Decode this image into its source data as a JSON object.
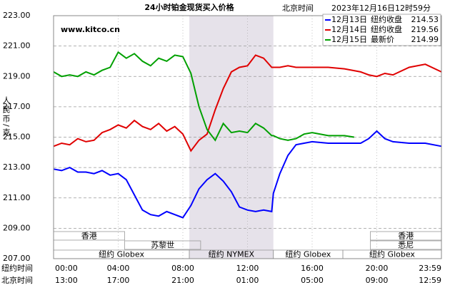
{
  "chart_data": {
    "type": "line",
    "title": "24小时铂金现货买入价格",
    "subtitle": "北京时间",
    "date": "2023年12月16日12时59分",
    "watermark": "www.kitco.cn",
    "ylabel": "人民币/克",
    "ylim": [
      207,
      223
    ],
    "yticks": [
      {
        "value": 207,
        "label": "207.00"
      },
      {
        "value": 209,
        "label": "209.00"
      },
      {
        "value": 211,
        "label": "211.00"
      },
      {
        "value": 213,
        "label": "213.00"
      },
      {
        "value": 215,
        "label": "215.00"
      },
      {
        "value": 217,
        "label": "217.00"
      },
      {
        "value": 219,
        "label": "219.00"
      },
      {
        "value": 221,
        "label": "221.00"
      },
      {
        "value": 223,
        "label": "223.00"
      }
    ],
    "xlim": [
      0,
      24
    ],
    "x_row_labels": [
      "纽约时间",
      "北京时间"
    ],
    "xticks": [
      {
        "value": 0,
        "label": "00:00"
      },
      {
        "value": 4,
        "label": "04:00"
      },
      {
        "value": 8,
        "label": "08:00"
      },
      {
        "value": 12,
        "label": "12:00"
      },
      {
        "value": 16,
        "label": "16:00"
      },
      {
        "value": 20,
        "label": "20:00"
      },
      {
        "value": 24,
        "label": "23:59"
      }
    ],
    "xticks2": [
      {
        "value": 0,
        "label": "13:00"
      },
      {
        "value": 4,
        "label": "17:00"
      },
      {
        "value": 8,
        "label": "21:00"
      },
      {
        "value": 12,
        "label": "01:00"
      },
      {
        "value": 16,
        "label": "05:00"
      },
      {
        "value": 20,
        "label": "09:00"
      },
      {
        "value": 24,
        "label": "12:59"
      }
    ],
    "grid": true,
    "highlight": [
      8.4,
      13.6
    ],
    "sessions": [
      {
        "name": "香港",
        "start": 0,
        "end": 4.4,
        "row": 0
      },
      {
        "name": "香港",
        "start": 19.6,
        "end": 24,
        "row": 0
      },
      {
        "name": "苏黎世",
        "start": 4.4,
        "end": 9.1,
        "row": 1
      },
      {
        "name": "悉尼",
        "start": 19.6,
        "end": 24,
        "row": 1
      },
      {
        "name": "纽约 Globex",
        "start": 0,
        "end": 8.4,
        "row": 2
      },
      {
        "name": "纽约 NYMEX",
        "start": 8.4,
        "end": 13.6,
        "row": 2
      },
      {
        "name": "纽约 Globex",
        "start": 13.6,
        "end": 17.9,
        "row": 2
      },
      {
        "name": "纽约 Globex",
        "start": 17.9,
        "end": 24,
        "row": 2
      }
    ],
    "series": [
      {
        "name": "12月13日",
        "label": "纽约收盘",
        "last": 214.53,
        "color": "#0000ff",
        "x": [
          0,
          0.5,
          1,
          1.5,
          2,
          2.5,
          3,
          3.5,
          4,
          4.5,
          5,
          5.5,
          6,
          6.5,
          7,
          7.5,
          8,
          8.5,
          9,
          9.5,
          10,
          10.5,
          11,
          11.5,
          12,
          12.5,
          13,
          13.5,
          13.6,
          14,
          14.5,
          15,
          15.5,
          16,
          17,
          18,
          19,
          19.5,
          20,
          20.5,
          21,
          22,
          23,
          24
        ],
        "values": [
          212.9,
          212.8,
          213.0,
          212.7,
          212.7,
          212.6,
          212.8,
          212.5,
          212.6,
          212.2,
          211.2,
          210.2,
          209.9,
          209.8,
          210.1,
          209.9,
          209.7,
          210.5,
          211.6,
          212.2,
          212.6,
          212.1,
          211.4,
          210.4,
          210.2,
          210.1,
          210.2,
          210.1,
          211.3,
          212.6,
          213.8,
          214.5,
          214.6,
          214.7,
          214.6,
          214.6,
          214.6,
          214.9,
          215.4,
          214.9,
          214.7,
          214.6,
          214.6,
          214.4
        ]
      },
      {
        "name": "12月14日",
        "label": "纽约收盘",
        "last": 219.56,
        "color": "#e00000",
        "x": [
          0,
          0.5,
          1,
          1.5,
          2,
          2.5,
          3,
          3.5,
          4,
          4.5,
          5,
          5.5,
          6,
          6.5,
          7,
          7.5,
          8,
          8.5,
          9,
          9.5,
          10,
          10.5,
          11,
          11.5,
          12,
          12.5,
          13,
          13.5,
          13.6,
          14,
          14.5,
          15,
          15.5,
          16,
          17,
          18,
          19,
          19.5,
          20,
          20.5,
          21,
          22,
          23,
          24
        ],
        "values": [
          214.4,
          214.6,
          214.5,
          214.9,
          214.7,
          214.8,
          215.3,
          215.5,
          215.8,
          215.6,
          216.1,
          215.7,
          215.5,
          215.9,
          215.4,
          215.7,
          215.2,
          214.1,
          214.8,
          215.2,
          216.8,
          218.2,
          219.3,
          219.6,
          219.7,
          220.4,
          220.2,
          219.6,
          219.6,
          219.6,
          219.7,
          219.6,
          219.6,
          219.6,
          219.6,
          219.5,
          219.3,
          219.1,
          219.0,
          219.2,
          219.1,
          219.6,
          219.8,
          219.3
        ]
      },
      {
        "name": "12月15日",
        "label": "最新价",
        "last": 214.99,
        "color": "#00a000",
        "x": [
          0,
          0.5,
          1,
          1.5,
          2,
          2.5,
          3,
          3.5,
          4,
          4.5,
          5,
          5.5,
          6,
          6.5,
          7,
          7.5,
          8,
          8.5,
          9,
          9.5,
          10,
          10.5,
          11,
          11.5,
          12,
          12.5,
          13,
          13.5,
          13.6,
          14,
          14.5,
          15,
          15.5,
          16,
          17,
          18,
          18.6
        ],
        "values": [
          219.3,
          219.0,
          219.1,
          219.0,
          219.3,
          219.1,
          219.4,
          219.6,
          220.6,
          220.2,
          220.5,
          220.0,
          219.7,
          220.2,
          220.0,
          220.4,
          220.3,
          219.2,
          217.0,
          215.5,
          214.8,
          215.9,
          215.3,
          215.4,
          215.3,
          215.9,
          215.6,
          215.1,
          215.1,
          214.9,
          214.8,
          214.9,
          215.2,
          215.3,
          215.1,
          215.1,
          215.0
        ]
      }
    ]
  }
}
